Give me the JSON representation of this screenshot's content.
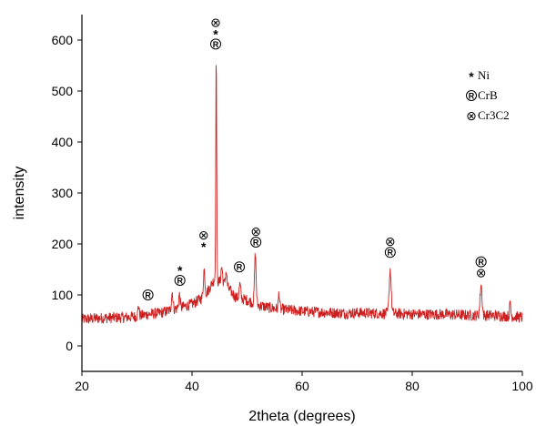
{
  "chart_data": {
    "type": "line",
    "title": "",
    "xlabel": "2theta (degrees)",
    "ylabel": "intensity",
    "xlim": [
      20,
      100
    ],
    "ylim": [
      -50,
      650
    ],
    "xticks": [
      20,
      40,
      60,
      80,
      100
    ],
    "yticks": [
      0,
      100,
      200,
      300,
      400,
      500,
      600
    ],
    "grid": false,
    "series_color": "#cc1f1f",
    "series": [
      {
        "name": "",
        "baseline": [
          [
            20,
            52
          ],
          [
            24,
            55
          ],
          [
            28,
            56
          ],
          [
            30,
            58
          ],
          [
            32,
            62
          ],
          [
            34,
            64
          ],
          [
            36,
            70
          ],
          [
            38,
            75
          ],
          [
            40,
            82
          ],
          [
            42,
            95
          ],
          [
            43,
            110
          ],
          [
            44,
            130
          ],
          [
            46,
            120
          ],
          [
            48,
            95
          ],
          [
            50,
            90
          ],
          [
            52,
            80
          ],
          [
            54,
            75
          ],
          [
            56,
            72
          ],
          [
            58,
            70
          ],
          [
            60,
            68
          ],
          [
            64,
            66
          ],
          [
            68,
            64
          ],
          [
            70,
            65
          ],
          [
            74,
            64
          ],
          [
            78,
            63
          ],
          [
            82,
            62
          ],
          [
            86,
            62
          ],
          [
            90,
            60
          ],
          [
            94,
            60
          ],
          [
            98,
            58
          ],
          [
            100,
            56
          ]
        ],
        "peaks": [
          {
            "x": 30.3,
            "y": 80,
            "w": 0.15
          },
          {
            "x": 36.4,
            "y": 105,
            "w": 0.2
          },
          {
            "x": 37.7,
            "y": 100,
            "w": 0.2
          },
          {
            "x": 42.2,
            "y": 150,
            "w": 0.2
          },
          {
            "x": 44.4,
            "y": 570,
            "w": 0.12
          },
          {
            "x": 45.4,
            "y": 155,
            "w": 0.2
          },
          {
            "x": 46.2,
            "y": 145,
            "w": 0.2
          },
          {
            "x": 48.7,
            "y": 120,
            "w": 0.2
          },
          {
            "x": 51.5,
            "y": 180,
            "w": 0.2
          },
          {
            "x": 55.8,
            "y": 105,
            "w": 0.15
          },
          {
            "x": 76.0,
            "y": 150,
            "w": 0.25
          },
          {
            "x": 92.5,
            "y": 120,
            "w": 0.25
          },
          {
            "x": 97.8,
            "y": 85,
            "w": 0.15
          }
        ]
      }
    ],
    "phase_symbols": {
      "ni": "*",
      "crb": "R",
      "cr3c2": "⊗"
    },
    "annotations": [
      {
        "x": 32.0,
        "y": 100,
        "symbols": [
          "crb"
        ]
      },
      {
        "x": 37.8,
        "y": 150,
        "symbols": [
          "ni",
          "crb"
        ]
      },
      {
        "x": 42.1,
        "y": 218,
        "symbols": [
          "cr3c2",
          "ni"
        ]
      },
      {
        "x": 44.3,
        "y": 635,
        "symbols": [
          "cr3c2",
          "ni",
          "crb"
        ]
      },
      {
        "x": 48.6,
        "y": 155,
        "symbols": [
          "crb"
        ]
      },
      {
        "x": 51.6,
        "y": 225,
        "symbols": [
          "cr3c2",
          "crb"
        ]
      },
      {
        "x": 76.0,
        "y": 205,
        "symbols": [
          "cr3c2",
          "crb"
        ]
      },
      {
        "x": 92.5,
        "y": 165,
        "symbols": [
          "crb",
          "cr3c2"
        ]
      }
    ],
    "legend": {
      "position": "top-right",
      "entries": [
        {
          "symbol": "ni",
          "label": "Ni"
        },
        {
          "symbol": "crb",
          "label": "CrB"
        },
        {
          "symbol": "cr3c2",
          "label": "Cr3C2"
        }
      ]
    }
  }
}
